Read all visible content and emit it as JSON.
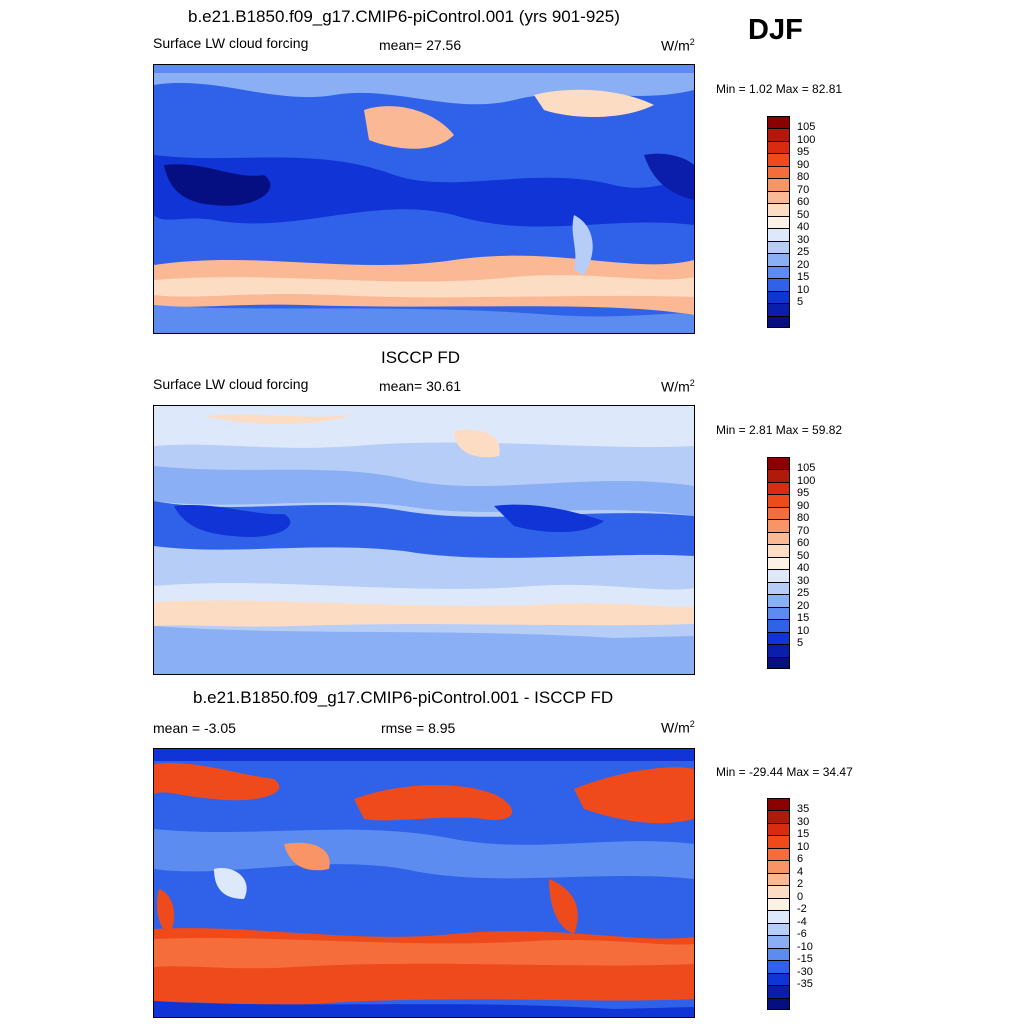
{
  "season": "DJF",
  "panels": [
    {
      "title": "b.e21.B1850.f09_g17.CMIP6-piControl.001 (yrs 901-925)",
      "left_label": "Surface LW cloud forcing",
      "center_label": "mean=  27.56",
      "units": "W/m",
      "units_exp": "2",
      "minmax": "Min =   1.02 Max =  82.81",
      "colorbar_labels": [
        "105",
        "100",
        "95",
        "90",
        "80",
        "70",
        "60",
        "50",
        "40",
        "30",
        "25",
        "20",
        "15",
        "10",
        "5"
      ],
      "colorbar_colors": [
        "#8b0000",
        "#b01a0a",
        "#d92b0f",
        "#ef4a1c",
        "#f56d3b",
        "#f99466",
        "#fbb895",
        "#fddcc4",
        "#fdf0e4",
        "#dde9fb",
        "#b6cdf7",
        "#8aaff4",
        "#5c8cf0",
        "#2f62e8",
        "#1034d6",
        "#0a1eab",
        "#050f82"
      ]
    },
    {
      "title": "ISCCP FD",
      "left_label": "Surface LW cloud forcing",
      "center_label": "mean=  30.61",
      "units": "W/m",
      "units_exp": "2",
      "minmax": "Min =   2.81 Max =  59.82",
      "colorbar_labels": [
        "105",
        "100",
        "95",
        "90",
        "80",
        "70",
        "60",
        "50",
        "40",
        "30",
        "25",
        "20",
        "15",
        "10",
        "5"
      ],
      "colorbar_colors": [
        "#8b0000",
        "#b01a0a",
        "#d92b0f",
        "#ef4a1c",
        "#f56d3b",
        "#f99466",
        "#fbb895",
        "#fddcc4",
        "#fdf0e4",
        "#dde9fb",
        "#b6cdf7",
        "#8aaff4",
        "#5c8cf0",
        "#2f62e8",
        "#1034d6",
        "#0a1eab",
        "#050f82"
      ]
    },
    {
      "title": "b.e21.B1850.f09_g17.CMIP6-piControl.001 - ISCCP FD",
      "left_label": "mean =  -3.05",
      "center_label": "rmse =   8.95",
      "units": "W/m",
      "units_exp": "2",
      "minmax": "Min = -29.44 Max =  34.47",
      "colorbar_labels": [
        "35",
        "30",
        "15",
        "10",
        "6",
        "4",
        "2",
        "0",
        "-2",
        "-4",
        "-6",
        "-10",
        "-15",
        "-30",
        "-35"
      ],
      "colorbar_colors": [
        "#8b0000",
        "#b01a0a",
        "#d92b0f",
        "#ef4a1c",
        "#f56d3b",
        "#f99466",
        "#fbb895",
        "#fddcc4",
        "#fdf0e4",
        "#dde9fb",
        "#b6cdf7",
        "#8aaff4",
        "#5c8cf0",
        "#2f62e8",
        "#1034d6",
        "#0a1eab",
        "#050f82"
      ]
    }
  ]
}
